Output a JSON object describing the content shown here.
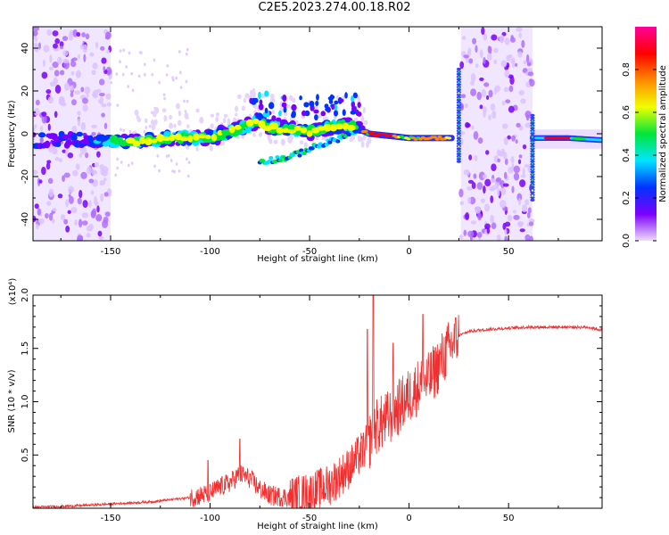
{
  "title": "C2E5.2023.274.00.18.R02",
  "colorbar": {
    "label": "Normalized spectral amplitude",
    "ticks": [
      "0.0",
      "0.2",
      "0.4",
      "0.6",
      "0.8"
    ],
    "tick_values": [
      0.0,
      0.2,
      0.4,
      0.6,
      0.8
    ],
    "range": [
      0,
      1
    ],
    "colors": [
      "#eedcff",
      "#7a00ff",
      "#0033ff",
      "#00e5ff",
      "#00e63a",
      "#f0ff00",
      "#ff8a00",
      "#ff0000",
      "#ff0099"
    ]
  },
  "chart_data": [
    {
      "type": "heatmap",
      "xlabel": "Height of straight line (km)",
      "ylabel": "Frequency (Hz)",
      "xlim": [
        -189,
        97
      ],
      "ylim": [
        -50,
        50
      ],
      "xticks": [
        -150,
        -100,
        -50,
        0,
        50
      ],
      "yticks": [
        -40,
        -20,
        0,
        20,
        40
      ],
      "ridge": {
        "x": [
          -189,
          -170,
          -150,
          -140,
          -130,
          -110,
          -100,
          -90,
          -80,
          -75,
          -70,
          -60,
          -50,
          -40,
          -30,
          -25,
          -20,
          -10,
          0,
          10,
          20,
          24,
          62,
          70,
          80,
          97
        ],
        "y": [
          -3,
          -3,
          -3,
          -4,
          -3,
          -2,
          -2,
          1,
          4,
          6,
          3,
          2,
          1,
          3,
          4,
          2,
          0,
          -1,
          -2,
          -2,
          -2,
          -2,
          -2,
          -2,
          -2,
          -3
        ]
      },
      "secondary_track": {
        "x": [
          -75,
          -60,
          -50,
          -40,
          -30
        ],
        "y": [
          -13,
          -11,
          -7,
          -4,
          0
        ]
      },
      "noise_bands": [
        [
          -189,
          -150
        ],
        [
          26,
          62
        ]
      ],
      "spikes": [
        {
          "x": 25,
          "fmin": -13,
          "fmax": 31
        },
        {
          "x": 62,
          "fmin": -31,
          "fmax": 9
        }
      ]
    },
    {
      "type": "line",
      "xlabel": "Height of straight line (km)",
      "ylabel": "SNR (10 * v/v)",
      "y_multiplier": "(x10⁴)",
      "xlim": [
        -189,
        97
      ],
      "ylim": [
        0,
        2.0
      ],
      "xticks": [
        -150,
        -100,
        -50,
        0,
        50
      ],
      "yticks": [
        "0.5",
        "1.0",
        "1.5",
        "2.0"
      ],
      "ytick_values": [
        0.5,
        1.0,
        1.5,
        2.0
      ],
      "color": "#f03030",
      "series": [
        {
          "x": [
            -189,
            -170,
            -150,
            -130,
            -110,
            -100,
            -95,
            -90,
            -85,
            -80,
            -75,
            -70,
            -60,
            -50,
            -40,
            -35,
            -30,
            -25,
            -20,
            -18,
            -15,
            -10,
            -5,
            0,
            5,
            10,
            15,
            20,
            25,
            30,
            40,
            50,
            60,
            70,
            80,
            90,
            97
          ],
          "values": [
            0.01,
            0.02,
            0.04,
            0.06,
            0.1,
            0.14,
            0.2,
            0.24,
            0.32,
            0.28,
            0.18,
            0.12,
            0.1,
            0.14,
            0.22,
            0.3,
            0.38,
            0.5,
            0.62,
            0.75,
            0.78,
            0.85,
            0.95,
            1.05,
            1.15,
            1.2,
            1.35,
            1.5,
            1.62,
            1.66,
            1.68,
            1.69,
            1.7,
            1.7,
            1.7,
            1.7,
            1.67
          ],
          "spikes": [
            {
              "x": -18,
              "value": 2.0
            },
            {
              "x": -21,
              "value": 1.68
            },
            {
              "x": -8,
              "value": 1.55
            },
            {
              "x": 7,
              "value": 1.82
            },
            {
              "x": -85,
              "value": 0.65
            },
            {
              "x": -101,
              "value": 0.45
            }
          ]
        }
      ]
    }
  ]
}
